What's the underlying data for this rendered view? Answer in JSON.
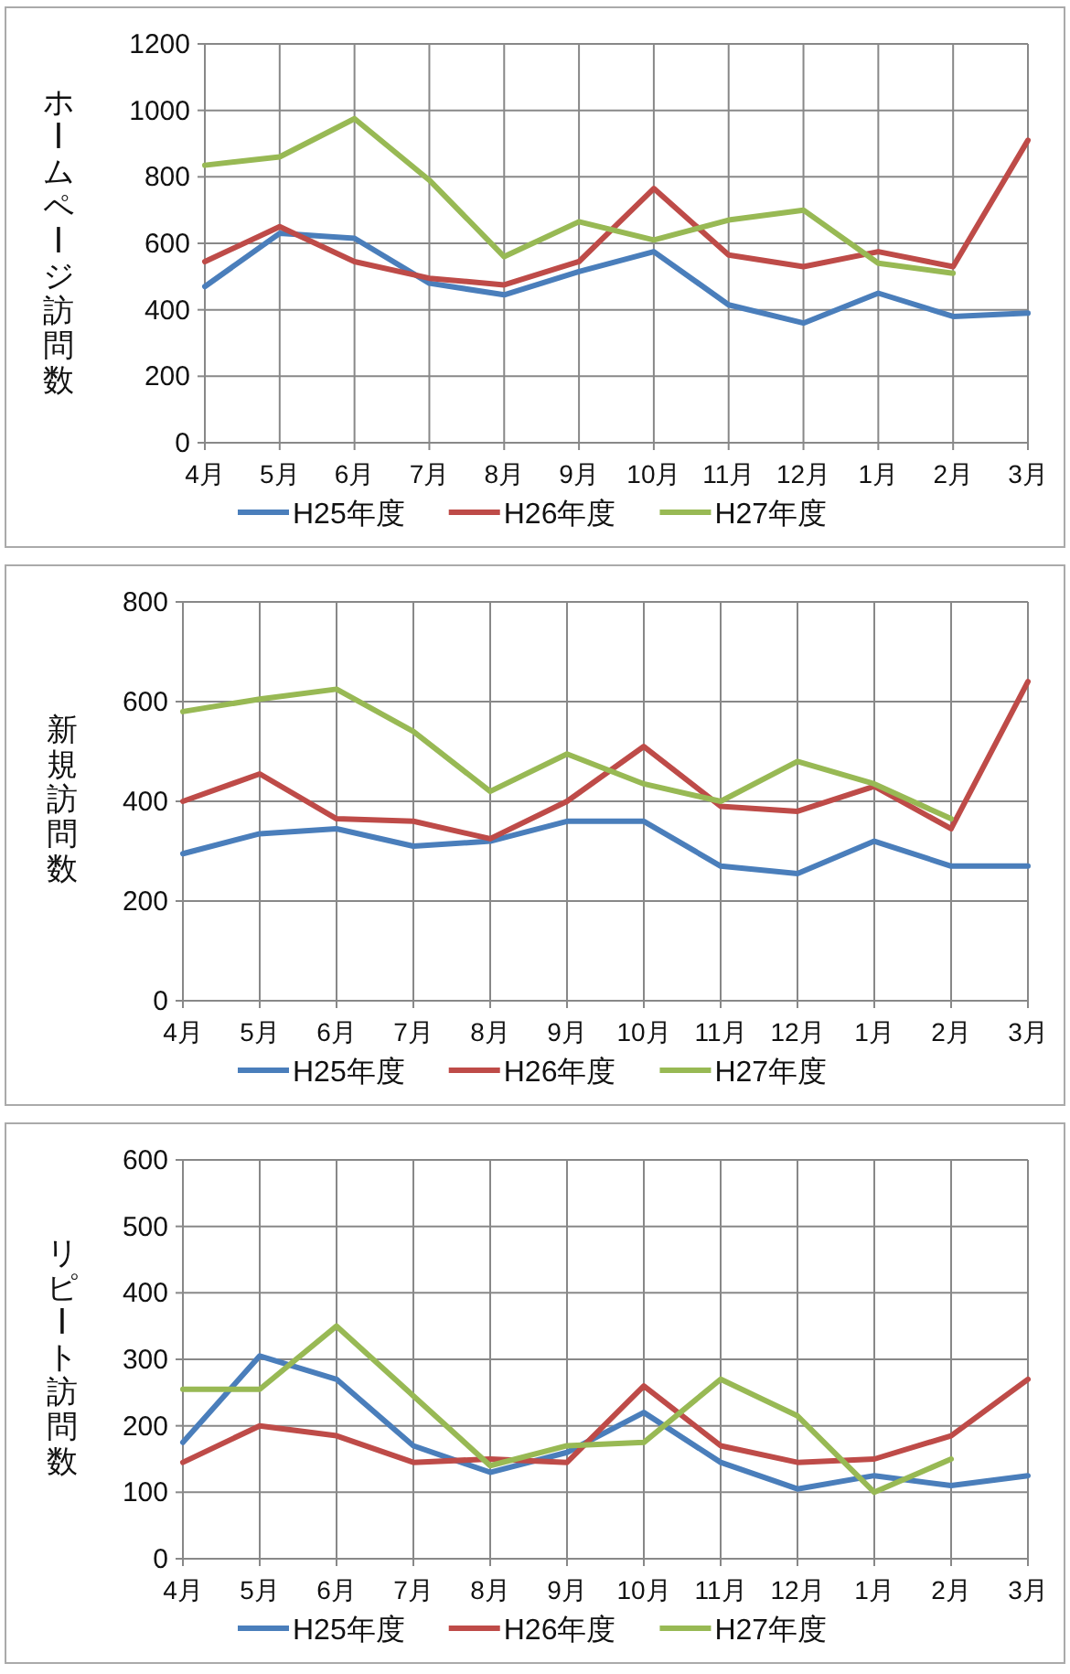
{
  "chart_data": [
    {
      "type": "line",
      "ylabel": "ホームページ訪問数",
      "categories": [
        "4月",
        "5月",
        "6月",
        "7月",
        "8月",
        "9月",
        "10月",
        "11月",
        "12月",
        "1月",
        "2月",
        "3月"
      ],
      "ylim": [
        0,
        1200
      ],
      "yticks": [
        0,
        200,
        400,
        600,
        800,
        1000,
        1200
      ],
      "grid": true,
      "legend": "bottom",
      "series": [
        {
          "name": "H25年度",
          "color": "#4a7ebb",
          "values": [
            470,
            630,
            615,
            480,
            445,
            515,
            575,
            415,
            360,
            450,
            380,
            390
          ]
        },
        {
          "name": "H26年度",
          "color": "#be4b48",
          "values": [
            545,
            650,
            545,
            495,
            475,
            545,
            765,
            565,
            530,
            575,
            530,
            910
          ]
        },
        {
          "name": "H27年度",
          "color": "#98b954",
          "values": [
            835,
            860,
            975,
            790,
            560,
            665,
            610,
            670,
            700,
            540,
            510,
            null
          ]
        }
      ]
    },
    {
      "type": "line",
      "ylabel": "新規訪問数",
      "categories": [
        "4月",
        "5月",
        "6月",
        "7月",
        "8月",
        "9月",
        "10月",
        "11月",
        "12月",
        "1月",
        "2月",
        "3月"
      ],
      "ylim": [
        0,
        800
      ],
      "yticks": [
        0,
        200,
        400,
        600,
        800
      ],
      "grid": true,
      "legend": "bottom",
      "series": [
        {
          "name": "H25年度",
          "color": "#4a7ebb",
          "values": [
            295,
            335,
            345,
            310,
            320,
            360,
            360,
            270,
            255,
            320,
            270,
            270
          ]
        },
        {
          "name": "H26年度",
          "color": "#be4b48",
          "values": [
            400,
            455,
            365,
            360,
            325,
            400,
            510,
            390,
            380,
            430,
            345,
            640
          ]
        },
        {
          "name": "H27年度",
          "color": "#98b954",
          "values": [
            580,
            605,
            625,
            540,
            420,
            495,
            435,
            400,
            480,
            435,
            365,
            null
          ]
        }
      ]
    },
    {
      "type": "line",
      "ylabel": "リピート訪問数",
      "categories": [
        "4月",
        "5月",
        "6月",
        "7月",
        "8月",
        "9月",
        "10月",
        "11月",
        "12月",
        "1月",
        "2月",
        "3月"
      ],
      "ylim": [
        0,
        600
      ],
      "yticks": [
        0,
        100,
        200,
        300,
        400,
        500,
        600
      ],
      "grid": true,
      "legend": "bottom",
      "series": [
        {
          "name": "H25年度",
          "color": "#4a7ebb",
          "values": [
            175,
            305,
            270,
            170,
            130,
            160,
            220,
            145,
            105,
            125,
            110,
            125
          ]
        },
        {
          "name": "H26年度",
          "color": "#be4b48",
          "values": [
            145,
            200,
            185,
            145,
            150,
            145,
            260,
            170,
            145,
            150,
            185,
            270
          ]
        },
        {
          "name": "H27年度",
          "color": "#98b954",
          "values": [
            255,
            255,
            350,
            245,
            140,
            170,
            175,
            270,
            215,
            100,
            150,
            null
          ]
        }
      ]
    }
  ]
}
